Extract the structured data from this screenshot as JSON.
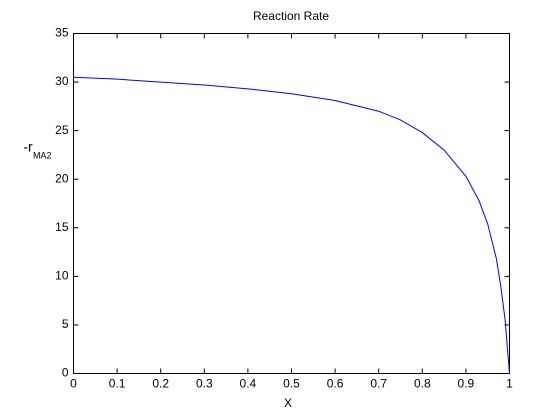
{
  "chart_data": {
    "type": "line",
    "title": "Reaction Rate",
    "xlabel": "X",
    "ylabel": "-r",
    "ylabel_subscript": "MA2",
    "x": [
      0,
      0.1,
      0.2,
      0.3,
      0.4,
      0.5,
      0.6,
      0.7,
      0.75,
      0.8,
      0.85,
      0.9,
      0.93,
      0.95,
      0.97,
      0.98,
      0.99,
      1.0
    ],
    "series": [
      {
        "name": "-r_MA2",
        "color": "#0000ff",
        "values": [
          30.5,
          30.3,
          30.0,
          29.7,
          29.3,
          28.8,
          28.1,
          27.0,
          26.1,
          24.8,
          23.0,
          20.3,
          17.8,
          15.4,
          11.8,
          9.0,
          5.5,
          0
        ]
      }
    ],
    "xlim": [
      0,
      1
    ],
    "xticks": [
      0,
      0.1,
      0.2,
      0.3,
      0.4,
      0.5,
      0.6,
      0.7,
      0.8,
      0.9,
      1
    ],
    "ylim": [
      0,
      35
    ],
    "yticks": [
      0,
      5,
      10,
      15,
      20,
      25,
      30,
      35
    ],
    "grid": false
  }
}
